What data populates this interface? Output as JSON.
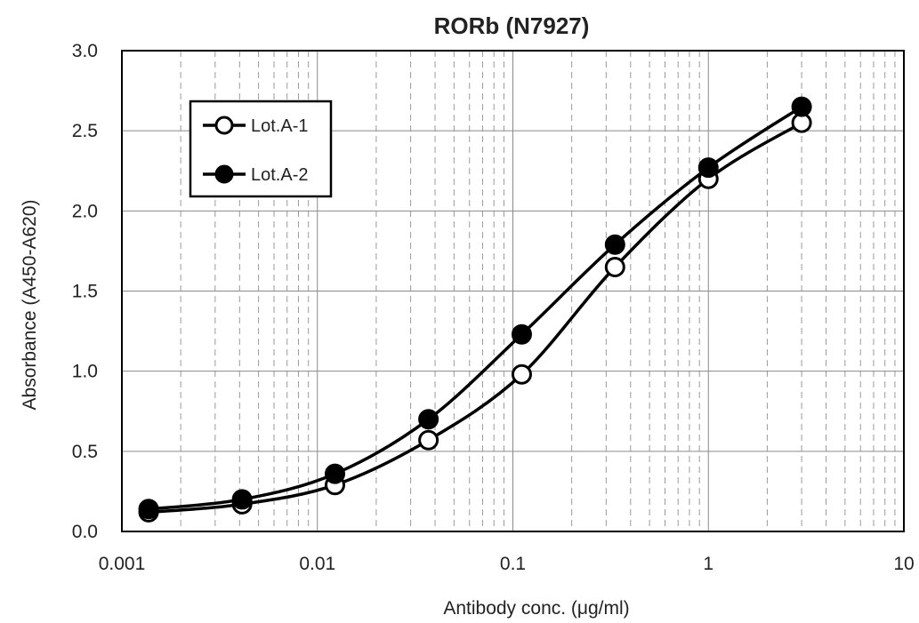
{
  "chart_data": {
    "type": "line",
    "title": "RORb (N7927)",
    "xlabel": "Antibody conc. (μg/ml)",
    "ylabel": "Absorbance (A450-A620)",
    "xscale": "log",
    "xlim": [
      0.001,
      10
    ],
    "ylim": [
      0.0,
      3.0
    ],
    "x_ticks": [
      "0.001",
      "0.01",
      "0.1",
      "1",
      "10"
    ],
    "y_ticks": [
      "0.0",
      "0.5",
      "1.0",
      "1.5",
      "2.0",
      "2.5",
      "3.0"
    ],
    "grid": true,
    "legend_position": "top-left",
    "x": [
      0.00137,
      0.00412,
      0.0123,
      0.037,
      0.111,
      0.333,
      1.0,
      3.0
    ],
    "series": [
      {
        "name": "Lot.A-1",
        "marker": "open-circle",
        "color": "#000000",
        "values": [
          0.12,
          0.17,
          0.29,
          0.57,
          0.98,
          1.65,
          2.2,
          2.55
        ]
      },
      {
        "name": "Lot.A-2",
        "marker": "filled-circle",
        "color": "#000000",
        "values": [
          0.14,
          0.2,
          0.36,
          0.7,
          1.23,
          1.79,
          2.27,
          2.65
        ]
      }
    ]
  }
}
